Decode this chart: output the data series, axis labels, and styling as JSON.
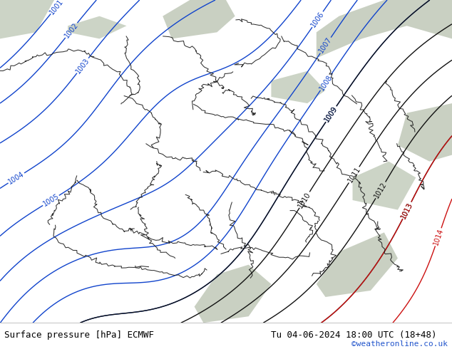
{
  "title_left": "Surface pressure [hPa] ECMWF",
  "title_right": "Tu 04-06-2024 18:00 UTC (18+48)",
  "credit": "©weatheronline.co.uk",
  "bg_color": "#b8d878",
  "sea_color": "#c0c8b8",
  "border_color": "#1a1a1a",
  "blue_contour_color": "#1144cc",
  "black_contour_color": "#111111",
  "red_contour_color": "#cc1111",
  "footer_bg": "#ffffff",
  "footer_text_color": "#000000",
  "credit_color": "#2255cc",
  "figsize": [
    6.34,
    4.9
  ],
  "dpi": 100
}
